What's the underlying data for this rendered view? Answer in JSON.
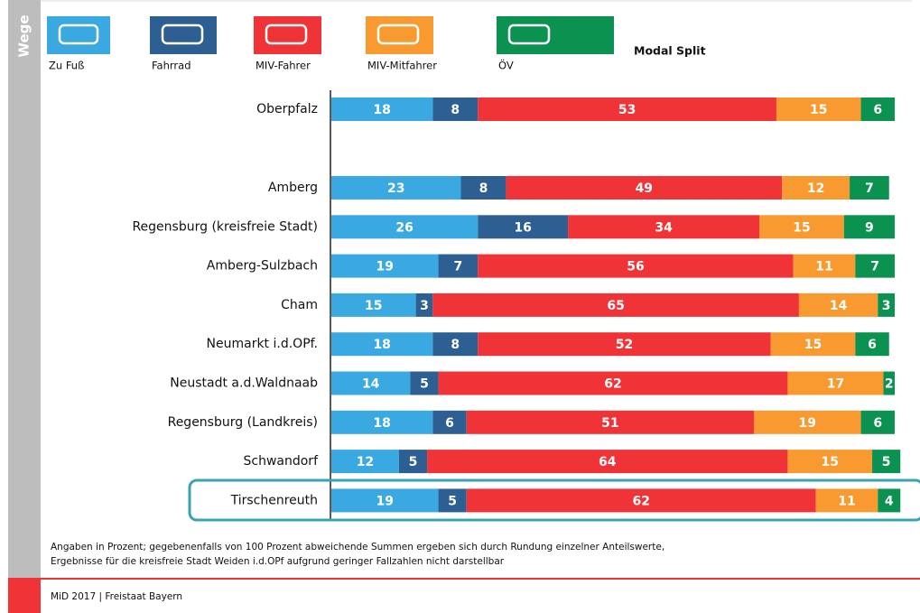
{
  "chart_data": {
    "type": "stacked-bar-horizontal",
    "side_label": "Wege",
    "title": "Modal Split",
    "categories": [
      "Oberpfalz",
      "Amberg",
      "Regensburg (kreisfreie Stadt)",
      "Amberg-Sulzbach",
      "Cham",
      "Neumarkt i.d.OPf.",
      "Neustadt a.d.Waldnaab",
      "Regensburg (Landkreis)",
      "Schwandorf",
      "Tirschenreuth"
    ],
    "series": [
      {
        "name": "Zu Fuß",
        "color": "#3aa8e1",
        "values": [
          18,
          23,
          26,
          19,
          15,
          18,
          14,
          18,
          12,
          19
        ]
      },
      {
        "name": "Fahrrad",
        "color": "#2d5f92",
        "values": [
          8,
          8,
          16,
          7,
          3,
          8,
          5,
          6,
          5,
          5
        ]
      },
      {
        "name": "MIV-Fahrer",
        "color": "#f03336",
        "values": [
          53,
          49,
          34,
          56,
          65,
          52,
          62,
          51,
          64,
          62
        ]
      },
      {
        "name": "MIV-Mitfahrer",
        "color": "#f89a30",
        "values": [
          15,
          12,
          15,
          11,
          14,
          15,
          17,
          19,
          15,
          11
        ]
      },
      {
        "name": "ÖV",
        "color": "#0b9150",
        "values": [
          6,
          7,
          9,
          7,
          3,
          6,
          2,
          6,
          5,
          4
        ]
      }
    ],
    "footnote": [
      "Angaben in Prozent; gegebenenfalls von 100 Prozent abweichende Summen ergeben sich durch Rundung einzelner Anteilswerte,",
      "Ergebnisse für die kreisfreie Stadt Weiden i.d.OPf aufgrund geringer Fallzahlen nicht darstellbar"
    ],
    "source": "MiD 2017 | Freistaat Bayern"
  }
}
